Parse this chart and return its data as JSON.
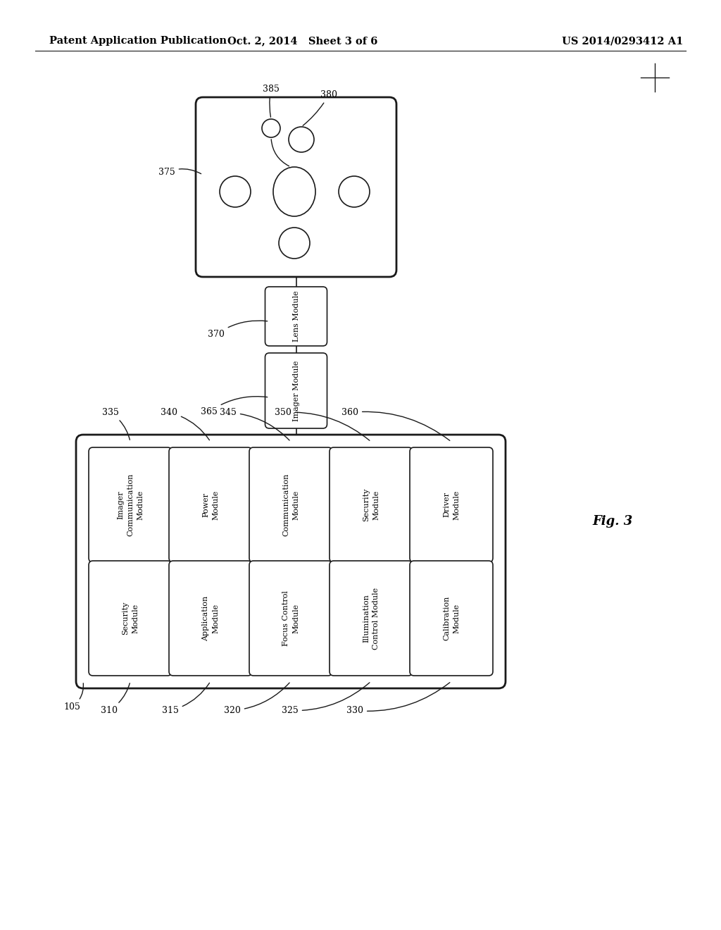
{
  "title_left": "Patent Application Publication",
  "title_center": "Oct. 2, 2014   Sheet 3 of 6",
  "title_right": "US 2014/0293412 A1",
  "fig_label": "Fig. 3",
  "bg_color": "#ffffff",
  "line_color": "#1a1a1a",
  "header_fontsize": 10.5,
  "ref_fontsize": 9,
  "cell_fontsize": 8
}
